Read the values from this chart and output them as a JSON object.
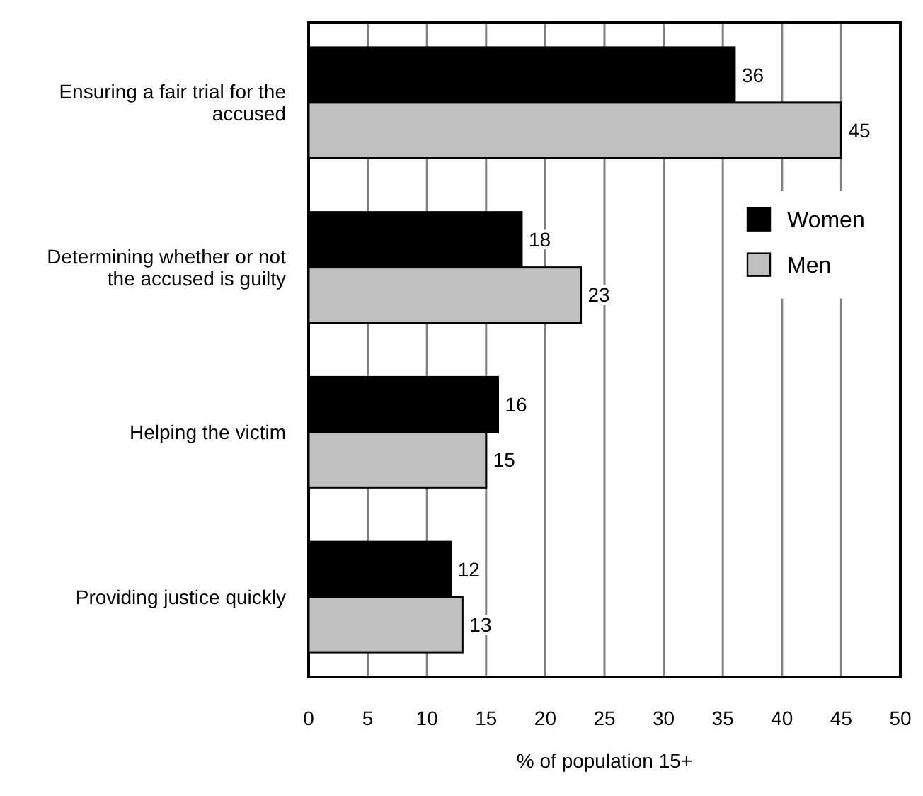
{
  "chart_data": {
    "type": "bar",
    "orientation": "horizontal",
    "xlabel": "% of population 15+",
    "categories": [
      "Ensuring a fair trial for the accused",
      "Determining whether or not the accused is guilty",
      "Helping the victim",
      "Providing justice quickly"
    ],
    "series": [
      {
        "name": "Women",
        "color": "#000000",
        "values": [
          36,
          18,
          16,
          12
        ]
      },
      {
        "name": "Men",
        "color": "#c0c0c0",
        "values": [
          45,
          23,
          15,
          13
        ]
      }
    ],
    "xlim": [
      0,
      50
    ],
    "xticks": [
      0,
      5,
      10,
      15,
      20,
      25,
      30,
      35,
      40,
      45,
      50
    ],
    "grid": "x",
    "data_labels": true,
    "legend": "right"
  }
}
